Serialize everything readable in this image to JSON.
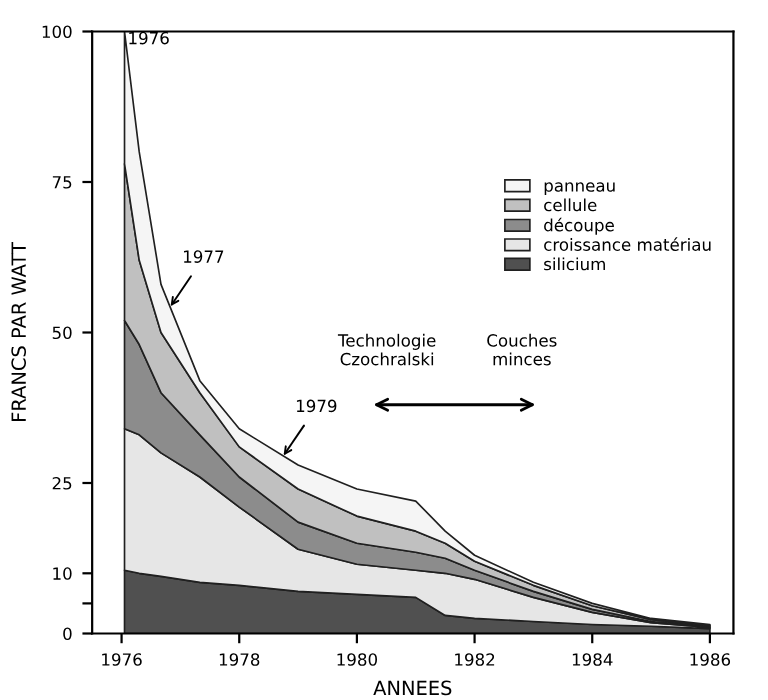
{
  "chart_data": {
    "type": "area",
    "stacked": true,
    "xlabel": "ANNEES",
    "ylabel": "FRANCS PAR WATT",
    "x": [
      1976.05,
      1976.3,
      1976.67,
      1977.33,
      1978,
      1979,
      1980,
      1981,
      1981.5,
      1982,
      1983,
      1984,
      1985,
      1986
    ],
    "series": [
      {
        "name": "silicium",
        "color": "#505050",
        "values": [
          10.5,
          10,
          9.5,
          8.5,
          8,
          7,
          6.5,
          6,
          3,
          2.5,
          2,
          1.5,
          1.2,
          0.8
        ]
      },
      {
        "name": "croissance matériau",
        "color": "#e6e6e6",
        "values": [
          23.5,
          23,
          20.5,
          17.5,
          13,
          7,
          5,
          4.5,
          7,
          6.5,
          4,
          2,
          0.6,
          0.2
        ]
      },
      {
        "name": "découpe",
        "color": "#8c8c8c",
        "values": [
          18,
          15,
          10,
          7,
          5,
          4.5,
          3.5,
          3,
          2.5,
          1.5,
          1,
          0.5,
          0.2,
          0.1
        ]
      },
      {
        "name": "cellule",
        "color": "#c0c0c0",
        "values": [
          26,
          14,
          10,
          7,
          5,
          5.5,
          4.5,
          3.5,
          2.5,
          1.5,
          1,
          0.6,
          0.3,
          0.2
        ]
      },
      {
        "name": "panneau",
        "color": "#f5f5f5",
        "values": [
          22,
          18,
          8,
          2,
          3,
          4,
          4.5,
          5,
          2,
          1,
          0.5,
          0.4,
          0.2,
          0.2
        ]
      }
    ],
    "xlim": [
      1975.5,
      1986.4
    ],
    "ylim": [
      0,
      100
    ],
    "xticks": [
      {
        "value": 1976,
        "label": "1976"
      },
      {
        "value": 1978,
        "label": "1978"
      },
      {
        "value": 1980,
        "label": "1980"
      },
      {
        "value": 1982,
        "label": "1982"
      },
      {
        "value": 1984,
        "label": "1984"
      },
      {
        "value": 1986,
        "label": "1986"
      }
    ],
    "yticks": [
      0,
      {
        "value": 5,
        "label": null
      },
      10,
      25,
      50,
      75,
      100
    ],
    "annotations": [
      {
        "text": "1976",
        "x": 1976.1,
        "y": 100
      },
      {
        "text": "1977",
        "x": 1976.78,
        "y": 53.6
      },
      {
        "text": "1979",
        "x": 1978.7,
        "y": 28.8
      },
      "Technologie\nCzochralski",
      "Couches\nminces"
    ],
    "legend": "top right",
    "grid": false
  }
}
